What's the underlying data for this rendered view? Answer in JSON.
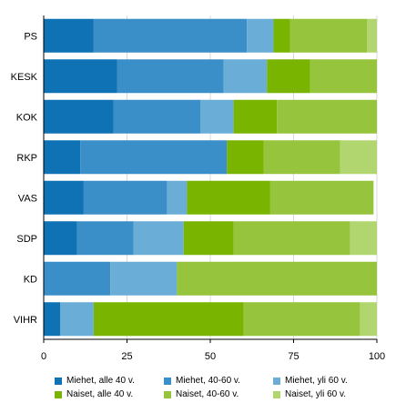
{
  "chart_data": {
    "type": "bar",
    "orientation": "horizontal",
    "stacked": true,
    "categories": [
      "PS",
      "KESK",
      "KOK",
      "RKP",
      "VAS",
      "SDP",
      "KD",
      "VIHR"
    ],
    "series": [
      {
        "name": "Miehet, alle 40 v.",
        "color": "#0e72b5",
        "values": [
          15,
          22,
          21,
          11,
          12,
          10,
          0,
          5
        ]
      },
      {
        "name": "Miehet, 40-60 v.",
        "color": "#3a8fc8",
        "values": [
          46,
          32,
          26,
          44,
          25,
          17,
          20,
          0
        ]
      },
      {
        "name": "Miehet, yli 60 v.",
        "color": "#6aadd6",
        "values": [
          8,
          13,
          10,
          0,
          6,
          15,
          20,
          10
        ]
      },
      {
        "name": "Naiset, alle 40 v.",
        "color": "#79b400",
        "values": [
          5,
          13,
          13,
          11,
          25,
          15,
          0,
          45
        ]
      },
      {
        "name": "Naiset, 40-60 v.",
        "color": "#96c43c",
        "values": [
          23,
          20,
          30,
          23,
          31,
          35,
          60,
          35
        ]
      },
      {
        "name": "Naiset, yli 60 v.",
        "color": "#b2d66f",
        "values": [
          3,
          0,
          0,
          11,
          0,
          8,
          0,
          5
        ]
      }
    ],
    "xlim": [
      0,
      100
    ],
    "xticks": [
      "0",
      "25",
      "50",
      "75",
      "100"
    ],
    "grid": "vertical",
    "legend_position": "bottom"
  }
}
